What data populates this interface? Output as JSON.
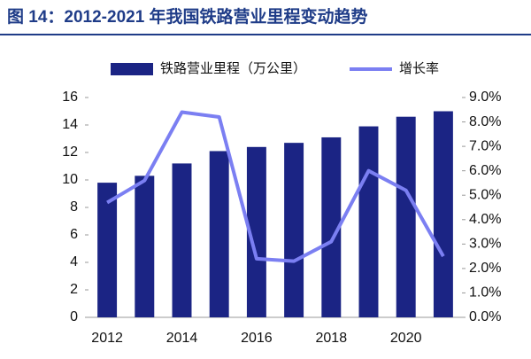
{
  "chart_data": {
    "type": "bar",
    "title": "图 14：2012-2021 年我国铁路营业里程变动趋势",
    "categories": [
      "2012",
      null,
      "2014",
      null,
      "2016",
      null,
      "2018",
      null,
      "2020",
      null
    ],
    "series": [
      {
        "name": "铁路营业里程（万公里）",
        "type": "bar",
        "color": "#1b2484",
        "values": [
          9.8,
          10.3,
          11.2,
          12.1,
          12.4,
          12.7,
          13.1,
          13.9,
          14.6,
          15.0
        ]
      },
      {
        "name": "增长率",
        "type": "line",
        "axis": "y2",
        "color": "#7b7ff2",
        "values": [
          4.7,
          5.6,
          8.4,
          8.2,
          2.4,
          2.3,
          3.1,
          6.0,
          5.2,
          2.5
        ]
      }
    ],
    "ylim": [
      0,
      16
    ],
    "yticks": [
      0,
      2,
      4,
      6,
      8,
      10,
      12,
      14,
      16
    ],
    "y2lim": [
      0,
      9
    ],
    "y2ticks": [
      {
        "value": 0,
        "label": "0.0%"
      },
      {
        "value": 1,
        "label": "1.0%"
      },
      {
        "value": 2,
        "label": "2.0%"
      },
      {
        "value": 3,
        "label": "3.0%"
      },
      {
        "value": 4,
        "label": "4.0%"
      },
      {
        "value": 5,
        "label": "5.0%"
      },
      {
        "value": 6,
        "label": "6.0%"
      },
      {
        "value": 7,
        "label": "7.0%"
      },
      {
        "value": 8,
        "label": "8.0%"
      },
      {
        "value": 9,
        "label": "9.0%"
      }
    ],
    "grid": false,
    "legend": "top"
  }
}
